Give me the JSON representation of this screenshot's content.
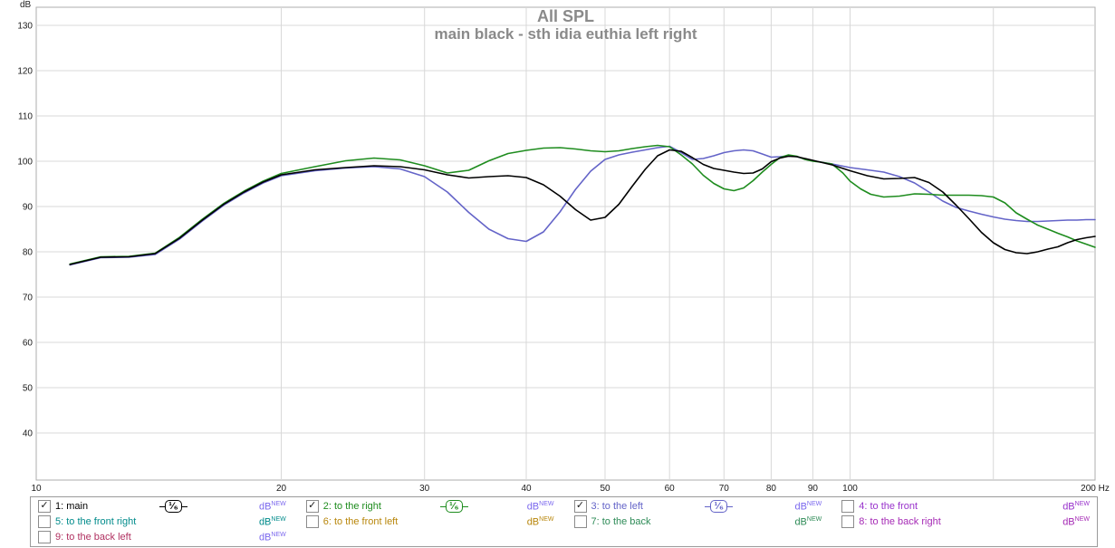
{
  "title": "All SPL",
  "subtitle": "main black - sth idia euthia left right",
  "axis": {
    "y_unit": "dB",
    "x_unit": "Hz",
    "y_ticks": [
      130,
      120,
      110,
      100,
      90,
      80,
      70,
      60,
      50,
      40
    ],
    "x_gridlines": [
      20,
      30,
      40,
      50,
      60,
      70,
      80,
      90,
      100,
      150
    ],
    "x_ticks": [
      {
        "v": 10,
        "label": "10"
      },
      {
        "v": 20,
        "label": "20"
      },
      {
        "v": 30,
        "label": "30"
      },
      {
        "v": 40,
        "label": "40"
      },
      {
        "v": 50,
        "label": "50"
      },
      {
        "v": 60,
        "label": "60"
      },
      {
        "v": 70,
        "label": "70"
      },
      {
        "v": 80,
        "label": "80"
      },
      {
        "v": 90,
        "label": "90"
      },
      {
        "v": 100,
        "label": "100"
      },
      {
        "v": 200,
        "label": "200 Hz"
      }
    ]
  },
  "chart_data": {
    "type": "line",
    "x_scale": "log",
    "title": "All SPL",
    "subtitle": "main black - sth idia euthia left right",
    "xlabel": "Hz",
    "ylabel": "dB",
    "xlim": [
      10,
      200
    ],
    "ylim": [
      30,
      134
    ],
    "grid": true,
    "legend_position": "bottom",
    "series": [
      {
        "name": "1: main",
        "color": "#000000",
        "points": [
          [
            11,
            77.2
          ],
          [
            12,
            78.8
          ],
          [
            13,
            78.9
          ],
          [
            14,
            79.6
          ],
          [
            15,
            83
          ],
          [
            16,
            87
          ],
          [
            17,
            90.5
          ],
          [
            18,
            93.2
          ],
          [
            19,
            95.4
          ],
          [
            20,
            97
          ],
          [
            22,
            98.1
          ],
          [
            24,
            98.6
          ],
          [
            26,
            99
          ],
          [
            28,
            98.8
          ],
          [
            30,
            98.1
          ],
          [
            32,
            97
          ],
          [
            34,
            96.3
          ],
          [
            36,
            96.6
          ],
          [
            38,
            96.8
          ],
          [
            40,
            96.4
          ],
          [
            42,
            94.8
          ],
          [
            44,
            92.3
          ],
          [
            46,
            89.3
          ],
          [
            48,
            87
          ],
          [
            50,
            87.6
          ],
          [
            52,
            90.5
          ],
          [
            54,
            94.5
          ],
          [
            56,
            98.2
          ],
          [
            58,
            101.2
          ],
          [
            60,
            102.5
          ],
          [
            62,
            102.2
          ],
          [
            64,
            100.8
          ],
          [
            66,
            99.3
          ],
          [
            68,
            98.4
          ],
          [
            70,
            98
          ],
          [
            72,
            97.6
          ],
          [
            74,
            97.3
          ],
          [
            76,
            97.4
          ],
          [
            78,
            98.3
          ],
          [
            80,
            99.9
          ],
          [
            82,
            100.7
          ],
          [
            84,
            101.1
          ],
          [
            86,
            101
          ],
          [
            88,
            100.6
          ],
          [
            90,
            100.2
          ],
          [
            95,
            99.2
          ],
          [
            100,
            97.9
          ],
          [
            105,
            96.8
          ],
          [
            110,
            96.1
          ],
          [
            115,
            96.2
          ],
          [
            120,
            96.4
          ],
          [
            125,
            95.3
          ],
          [
            130,
            93.2
          ],
          [
            135,
            90.3
          ],
          [
            140,
            87.3
          ],
          [
            145,
            84.3
          ],
          [
            150,
            82
          ],
          [
            155,
            80.5
          ],
          [
            160,
            79.8
          ],
          [
            165,
            79.6
          ],
          [
            170,
            80
          ],
          [
            175,
            80.6
          ],
          [
            180,
            81.1
          ],
          [
            185,
            82
          ],
          [
            190,
            82.7
          ],
          [
            195,
            83.1
          ],
          [
            200,
            83.4
          ]
        ]
      },
      {
        "name": "2: to the right",
        "color": "#1e8c1e",
        "points": [
          [
            11,
            77.3
          ],
          [
            12,
            78.9
          ],
          [
            13,
            79
          ],
          [
            14,
            79.7
          ],
          [
            15,
            83.2
          ],
          [
            16,
            87.2
          ],
          [
            17,
            90.7
          ],
          [
            18,
            93.4
          ],
          [
            19,
            95.6
          ],
          [
            20,
            97.3
          ],
          [
            22,
            98.8
          ],
          [
            24,
            100.1
          ],
          [
            26,
            100.7
          ],
          [
            28,
            100.3
          ],
          [
            30,
            99
          ],
          [
            32,
            97.4
          ],
          [
            34,
            98
          ],
          [
            36,
            100.1
          ],
          [
            38,
            101.7
          ],
          [
            40,
            102.4
          ],
          [
            42,
            102.9
          ],
          [
            44,
            103
          ],
          [
            46,
            102.7
          ],
          [
            48,
            102.3
          ],
          [
            50,
            102.1
          ],
          [
            52,
            102.3
          ],
          [
            54,
            102.8
          ],
          [
            56,
            103.2
          ],
          [
            58,
            103.5
          ],
          [
            60,
            103.2
          ],
          [
            62,
            101.4
          ],
          [
            64,
            99.4
          ],
          [
            66,
            96.9
          ],
          [
            68,
            95.1
          ],
          [
            70,
            93.9
          ],
          [
            72,
            93.5
          ],
          [
            74,
            94.1
          ],
          [
            76,
            95.7
          ],
          [
            78,
            97.6
          ],
          [
            80,
            99.3
          ],
          [
            82,
            100.8
          ],
          [
            84,
            101.4
          ],
          [
            86,
            101.1
          ],
          [
            88,
            100.4
          ],
          [
            90,
            100
          ],
          [
            92,
            99.8
          ],
          [
            95,
            99.4
          ],
          [
            98,
            97.4
          ],
          [
            100,
            95.6
          ],
          [
            103,
            93.9
          ],
          [
            106,
            92.7
          ],
          [
            110,
            92.1
          ],
          [
            115,
            92.3
          ],
          [
            120,
            92.8
          ],
          [
            125,
            92.7
          ],
          [
            130,
            92.5
          ],
          [
            135,
            92.5
          ],
          [
            140,
            92.5
          ],
          [
            145,
            92.4
          ],
          [
            150,
            92.1
          ],
          [
            155,
            90.8
          ],
          [
            160,
            88.6
          ],
          [
            165,
            87.2
          ],
          [
            170,
            85.9
          ],
          [
            175,
            85
          ],
          [
            180,
            84.1
          ],
          [
            185,
            83.3
          ],
          [
            190,
            82.4
          ],
          [
            195,
            81.7
          ],
          [
            200,
            81
          ]
        ]
      },
      {
        "name": "3: to the left",
        "color": "#6464c8",
        "points": [
          [
            11,
            77.1
          ],
          [
            12,
            78.7
          ],
          [
            13,
            78.8
          ],
          [
            14,
            79.4
          ],
          [
            15,
            82.8
          ],
          [
            16,
            86.8
          ],
          [
            17,
            90.3
          ],
          [
            18,
            93
          ],
          [
            19,
            95.2
          ],
          [
            20,
            96.8
          ],
          [
            22,
            97.9
          ],
          [
            24,
            98.5
          ],
          [
            26,
            98.8
          ],
          [
            28,
            98.3
          ],
          [
            30,
            96.6
          ],
          [
            32,
            93.2
          ],
          [
            34,
            88.7
          ],
          [
            36,
            85
          ],
          [
            38,
            82.9
          ],
          [
            40,
            82.3
          ],
          [
            42,
            84.4
          ],
          [
            44,
            88.8
          ],
          [
            46,
            93.8
          ],
          [
            48,
            97.8
          ],
          [
            50,
            100.4
          ],
          [
            52,
            101.4
          ],
          [
            54,
            102
          ],
          [
            56,
            102.5
          ],
          [
            58,
            103
          ],
          [
            60,
            103.3
          ],
          [
            62,
            101.9
          ],
          [
            64,
            100.4
          ],
          [
            66,
            100.6
          ],
          [
            68,
            101.2
          ],
          [
            70,
            101.9
          ],
          [
            72,
            102.3
          ],
          [
            74,
            102.5
          ],
          [
            76,
            102.3
          ],
          [
            78,
            101.6
          ],
          [
            80,
            100.9
          ],
          [
            82,
            101
          ],
          [
            84,
            101.2
          ],
          [
            86,
            101
          ],
          [
            88,
            100.5
          ],
          [
            90,
            100.1
          ],
          [
            95,
            99.4
          ],
          [
            100,
            98.6
          ],
          [
            105,
            98.1
          ],
          [
            110,
            97.6
          ],
          [
            115,
            96.6
          ],
          [
            120,
            95.2
          ],
          [
            125,
            93.2
          ],
          [
            130,
            91.2
          ],
          [
            135,
            89.8
          ],
          [
            140,
            89
          ],
          [
            145,
            88.3
          ],
          [
            150,
            87.7
          ],
          [
            155,
            87.2
          ],
          [
            160,
            86.9
          ],
          [
            165,
            86.7
          ],
          [
            170,
            86.7
          ],
          [
            175,
            86.8
          ],
          [
            180,
            86.9
          ],
          [
            185,
            87
          ],
          [
            190,
            87
          ],
          [
            195,
            87.1
          ],
          [
            200,
            87.1
          ]
        ]
      }
    ]
  },
  "legend": {
    "items": [
      {
        "label": "1: main",
        "color": "#000000",
        "checked": true,
        "smoothing": "¹⁄₆",
        "smoothing_color": "#000000",
        "unit": "dB",
        "unit_sup": "NEW",
        "unit_color": "#7b68ee"
      },
      {
        "label": "2: to the right",
        "color": "#1e8c1e",
        "checked": true,
        "smoothing": "¹⁄₆",
        "smoothing_color": "#1e8c1e",
        "unit": "dB",
        "unit_sup": "NEW",
        "unit_color": "#7b68ee"
      },
      {
        "label": "3: to the left",
        "color": "#6464c8",
        "checked": true,
        "smoothing": "¹⁄₆",
        "smoothing_color": "#6464c8",
        "unit": "dB",
        "unit_sup": "NEW",
        "unit_color": "#7b68ee"
      },
      {
        "label": "4: to the front",
        "color": "#9933cc",
        "checked": false,
        "smoothing": null,
        "unit": "dB",
        "unit_sup": "NEW",
        "unit_color": "#9933cc"
      },
      {
        "label": "5: to the front right",
        "color": "#008b8b",
        "checked": false,
        "smoothing": null,
        "unit": "dB",
        "unit_sup": "NEW",
        "unit_color": "#008b8b"
      },
      {
        "label": "6: to the front left",
        "color": "#b8860b",
        "checked": false,
        "smoothing": null,
        "unit": "dB",
        "unit_sup": "NEW",
        "unit_color": "#b8860b"
      },
      {
        "label": "7: to the back",
        "color": "#2e8b57",
        "checked": false,
        "smoothing": null,
        "unit": "dB",
        "unit_sup": "NEW",
        "unit_color": "#2e8b57"
      },
      {
        "label": "8: to the back right",
        "color": "#a52ab5",
        "checked": false,
        "smoothing": null,
        "unit": "dB",
        "unit_sup": "NEW",
        "unit_color": "#a52ab5"
      },
      {
        "label": "9: to the back left",
        "color": "#b03060",
        "checked": false,
        "smoothing": null,
        "unit": "dB",
        "unit_sup": "NEW",
        "unit_color": "#7b68ee"
      }
    ]
  }
}
